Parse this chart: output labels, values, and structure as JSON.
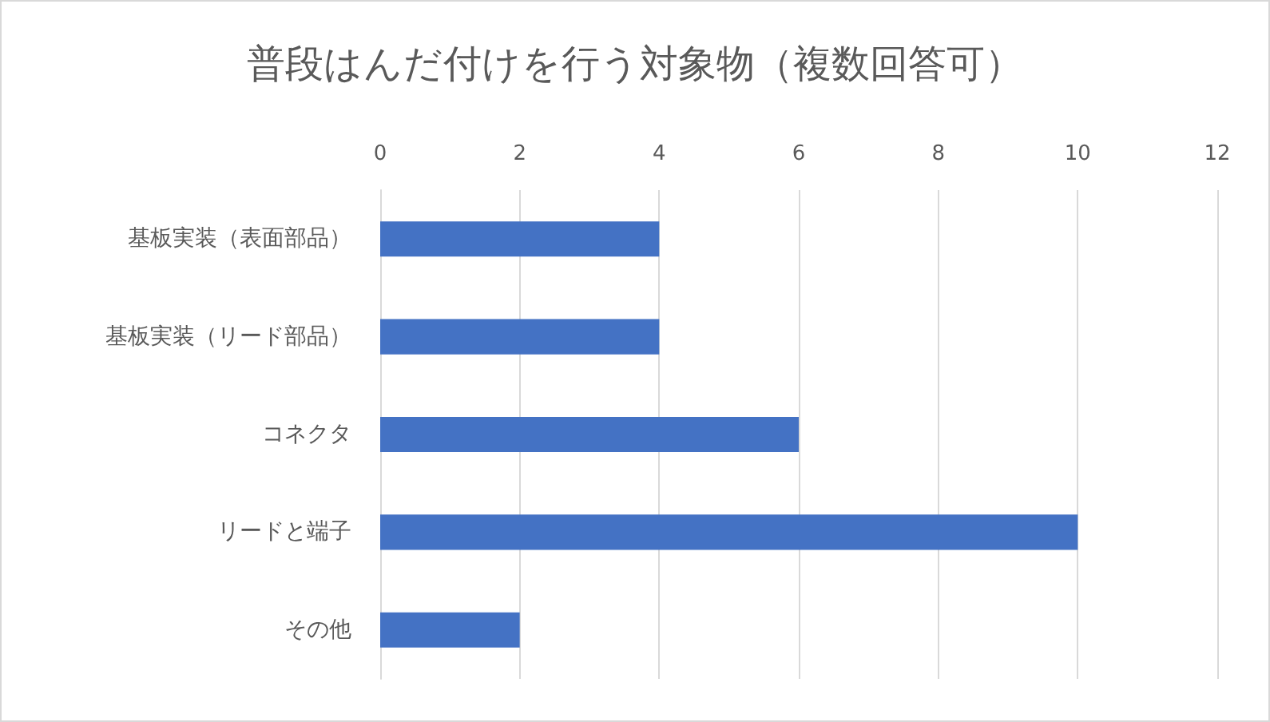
{
  "chart_data": {
    "type": "bar",
    "orientation": "horizontal",
    "title": "普段はんだ付けを行う対象物（複数回答可）",
    "categories": [
      "基板実装（表面部品）",
      "基板実装（リード部品）",
      "コネクタ",
      "リードと端子",
      "その他"
    ],
    "values": [
      4,
      4,
      6,
      10,
      2
    ],
    "color": "#4472c4",
    "xlim": [
      0,
      12
    ],
    "xticks": [
      0,
      2,
      4,
      6,
      8,
      10,
      12
    ],
    "grid": "x"
  }
}
